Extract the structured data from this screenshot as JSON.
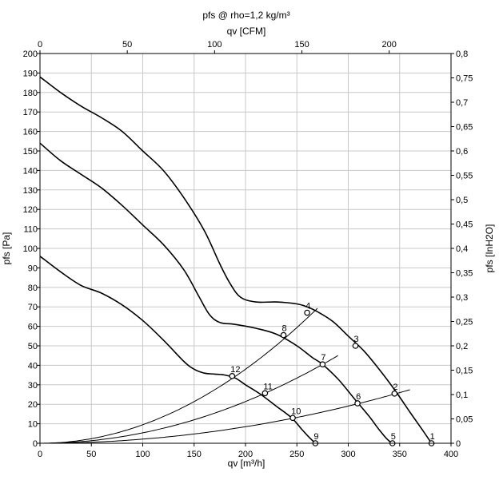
{
  "chart_data": {
    "type": "line",
    "title": "pfs @ rho=1,2 kg/m³",
    "xlabel": "qv [m³/h]",
    "ylabel": "pfs [Pa]",
    "x2label": "qv [CFM]",
    "y2label": "pfs [InH2O]",
    "xlim": [
      0,
      400
    ],
    "ylim": [
      0,
      200
    ],
    "x2lim": [
      0,
      235.4
    ],
    "y2lim": [
      0,
      0.8
    ],
    "grid": true,
    "x_ticks": [
      "0",
      "50",
      "100",
      "150",
      "200",
      "250",
      "300",
      "350",
      "400"
    ],
    "y_ticks": [
      "0",
      "10",
      "20",
      "30",
      "40",
      "50",
      "60",
      "70",
      "80",
      "90",
      "100",
      "110",
      "120",
      "130",
      "140",
      "150",
      "160",
      "170",
      "180",
      "190",
      "200"
    ],
    "x2_ticks": [
      "0",
      "50",
      "100",
      "150",
      "200"
    ],
    "y2_ticks": [
      "0",
      "0,05",
      "0,1",
      "0,15",
      "0,2",
      "0,25",
      "0,3",
      "0,35",
      "0,4",
      "0,45",
      "0,5",
      "0,55",
      "0,6",
      "0,65",
      "0,7",
      "0,75",
      "0,8"
    ],
    "fan_curves": [
      {
        "x": [
          0,
          20,
          40,
          60,
          80,
          100,
          120,
          140,
          160,
          175,
          185,
          195,
          210,
          230,
          250,
          260,
          270,
          285,
          300,
          315,
          330,
          345,
          360,
          372,
          381
        ],
        "y": [
          188,
          180,
          173,
          167,
          160,
          150,
          140,
          126,
          109,
          92,
          82,
          75,
          72.5,
          72.5,
          71.5,
          70,
          67.5,
          62.5,
          55,
          47.5,
          38,
          27.5,
          16,
          7,
          0
        ]
      },
      {
        "x": [
          0,
          20,
          40,
          60,
          80,
          100,
          120,
          140,
          155,
          165,
          175,
          190,
          210,
          230,
          250,
          265,
          275,
          290,
          305,
          320,
          330,
          338,
          343
        ],
        "y": [
          154,
          145,
          138,
          131,
          122,
          112,
          102,
          89,
          75,
          66,
          62,
          61,
          59,
          56,
          50,
          44,
          40.5,
          33,
          23.5,
          14,
          7,
          2,
          0
        ]
      },
      {
        "x": [
          0,
          20,
          40,
          60,
          80,
          100,
          120,
          140,
          150,
          160,
          170,
          180,
          190,
          200,
          215,
          230,
          245,
          255,
          262,
          268
        ],
        "y": [
          96,
          88,
          81,
          77,
          71,
          63,
          53,
          42,
          38,
          36,
          35.5,
          35,
          33.5,
          30,
          25,
          19,
          13,
          7,
          3,
          0
        ]
      }
    ],
    "system_curves": [
      {
        "k": 0.00095,
        "x_end": 270
      },
      {
        "k": 0.000535,
        "x_end": 290
      },
      {
        "k": 0.000212,
        "x_end": 360
      }
    ],
    "operating_points": [
      {
        "label": "1",
        "x": 381,
        "y": 0
      },
      {
        "label": "2",
        "x": 345,
        "y": 25.5
      },
      {
        "label": "3",
        "x": 307,
        "y": 50
      },
      {
        "label": "4",
        "x": 260,
        "y": 67
      },
      {
        "label": "5",
        "x": 343,
        "y": 0
      },
      {
        "label": "6",
        "x": 309,
        "y": 20.5
      },
      {
        "label": "7",
        "x": 275,
        "y": 40.5
      },
      {
        "label": "8",
        "x": 237,
        "y": 55.5
      },
      {
        "label": "9",
        "x": 268,
        "y": 0
      },
      {
        "label": "10",
        "x": 246,
        "y": 13
      },
      {
        "label": "11",
        "x": 219,
        "y": 25.7
      },
      {
        "label": "12",
        "x": 187,
        "y": 34.5
      }
    ]
  }
}
